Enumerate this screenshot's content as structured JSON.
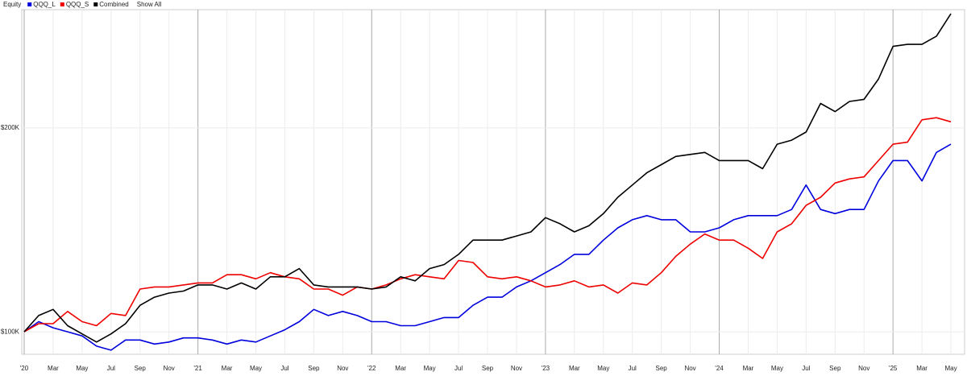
{
  "chart_data": {
    "type": "line",
    "title": "Equity",
    "legend_action": "Show All",
    "x": [
      "2020-01",
      "2020-02",
      "2020-03",
      "2020-04",
      "2020-05",
      "2020-06",
      "2020-07",
      "2020-08",
      "2020-09",
      "2020-10",
      "2020-11",
      "2020-12",
      "2021-01",
      "2021-02",
      "2021-03",
      "2021-04",
      "2021-05",
      "2021-06",
      "2021-07",
      "2021-08",
      "2021-09",
      "2021-10",
      "2021-11",
      "2021-12",
      "2022-01",
      "2022-02",
      "2022-03",
      "2022-04",
      "2022-05",
      "2022-06",
      "2022-07",
      "2022-08",
      "2022-09",
      "2022-10",
      "2022-11",
      "2022-12",
      "2023-01",
      "2023-02",
      "2023-03",
      "2023-04",
      "2023-05",
      "2023-06",
      "2023-07",
      "2023-08",
      "2023-09",
      "2023-10",
      "2023-11",
      "2023-12",
      "2024-01",
      "2024-02",
      "2024-03",
      "2024-04",
      "2024-05",
      "2024-06",
      "2024-07",
      "2024-08",
      "2024-09",
      "2024-10",
      "2024-11",
      "2024-12",
      "2025-01",
      "2025-02",
      "2025-03",
      "2025-04",
      "2025-05"
    ],
    "series": [
      {
        "name": "QQQ_L",
        "color": "#0000dd",
        "values": [
          100000,
          105000,
          102000,
          100000,
          98000,
          93000,
          91000,
          96000,
          96000,
          94000,
          95000,
          97000,
          97000,
          96000,
          94000,
          96000,
          95000,
          98000,
          101000,
          105000,
          111000,
          108000,
          110000,
          108000,
          105000,
          105000,
          103000,
          103000,
          105000,
          107000,
          107000,
          113000,
          117000,
          117000,
          122000,
          125000,
          129000,
          133000,
          138000,
          138000,
          145000,
          151000,
          155000,
          157000,
          155000,
          155000,
          149000,
          149000,
          151000,
          155000,
          157000,
          157000,
          157000,
          160000,
          172000,
          160000,
          158000,
          160000,
          160000,
          174000,
          184000,
          184000,
          174000,
          188000,
          192000
        ]
      },
      {
        "name": "QQQ_S",
        "color": "#ee0000",
        "values": [
          100000,
          104000,
          104000,
          110000,
          105000,
          103000,
          109000,
          108000,
          121000,
          122000,
          122000,
          123000,
          124000,
          124000,
          128000,
          128000,
          126000,
          129000,
          127000,
          126000,
          121000,
          121000,
          118000,
          122000,
          121000,
          123000,
          126000,
          128000,
          127000,
          126000,
          135000,
          134000,
          127000,
          126000,
          127000,
          125000,
          122000,
          123000,
          125000,
          122000,
          123000,
          119000,
          124000,
          123000,
          129000,
          137000,
          143000,
          148000,
          145000,
          145000,
          141000,
          136000,
          149000,
          153000,
          162000,
          166000,
          173000,
          175000,
          176000,
          184000,
          192000,
          193000,
          204000,
          205000,
          203000
        ]
      },
      {
        "name": "Combined",
        "color": "#000000",
        "values": [
          100000,
          108000,
          111000,
          103000,
          99000,
          95000,
          99000,
          104000,
          113000,
          117000,
          119000,
          120000,
          123000,
          123000,
          121000,
          124000,
          121000,
          127000,
          127000,
          131000,
          123000,
          122000,
          122000,
          122000,
          121000,
          122000,
          127000,
          125000,
          131000,
          133000,
          138000,
          145000,
          145000,
          145000,
          147000,
          149000,
          156000,
          153000,
          149000,
          152000,
          158000,
          166000,
          172000,
          178000,
          182000,
          186000,
          187000,
          188000,
          184000,
          184000,
          184000,
          180000,
          192000,
          194000,
          198000,
          212000,
          208000,
          213000,
          214000,
          224000,
          240000,
          241000,
          241000,
          245000,
          256000
        ]
      }
    ],
    "xlim": [
      "2020-01",
      "2025-06"
    ],
    "xticks": [
      {
        "value": "2020-01",
        "label": "'20"
      },
      {
        "value": "2020-03",
        "label": "Mar"
      },
      {
        "value": "2020-05",
        "label": "May"
      },
      {
        "value": "2020-07",
        "label": "Jul"
      },
      {
        "value": "2020-09",
        "label": "Sep"
      },
      {
        "value": "2020-11",
        "label": "Nov"
      },
      {
        "value": "2021-01",
        "label": "'21"
      },
      {
        "value": "2021-03",
        "label": "Mar"
      },
      {
        "value": "2021-05",
        "label": "May"
      },
      {
        "value": "2021-07",
        "label": "Jul"
      },
      {
        "value": "2021-09",
        "label": "Sep"
      },
      {
        "value": "2021-11",
        "label": "Nov"
      },
      {
        "value": "2022-01",
        "label": "'22"
      },
      {
        "value": "2022-03",
        "label": "Mar"
      },
      {
        "value": "2022-05",
        "label": "May"
      },
      {
        "value": "2022-07",
        "label": "Jul"
      },
      {
        "value": "2022-09",
        "label": "Sep"
      },
      {
        "value": "2022-11",
        "label": "Nov"
      },
      {
        "value": "2023-01",
        "label": "'23"
      },
      {
        "value": "2023-03",
        "label": "Mar"
      },
      {
        "value": "2023-05",
        "label": "May"
      },
      {
        "value": "2023-07",
        "label": "Jul"
      },
      {
        "value": "2023-09",
        "label": "Sep"
      },
      {
        "value": "2023-11",
        "label": "Nov"
      },
      {
        "value": "2024-01",
        "label": "'24"
      },
      {
        "value": "2024-03",
        "label": "Mar"
      },
      {
        "value": "2024-05",
        "label": "May"
      },
      {
        "value": "2024-07",
        "label": "Jul"
      },
      {
        "value": "2024-09",
        "label": "Sep"
      },
      {
        "value": "2024-11",
        "label": "Nov"
      },
      {
        "value": "2025-01",
        "label": "'25"
      },
      {
        "value": "2025-03",
        "label": "Mar"
      },
      {
        "value": "2025-05",
        "label": "May"
      }
    ],
    "ylim": [
      89000,
      258000
    ],
    "yticks": [
      {
        "value": 100000,
        "label": "$100K"
      },
      {
        "value": 200000,
        "label": "$200K"
      }
    ],
    "grid": true
  }
}
